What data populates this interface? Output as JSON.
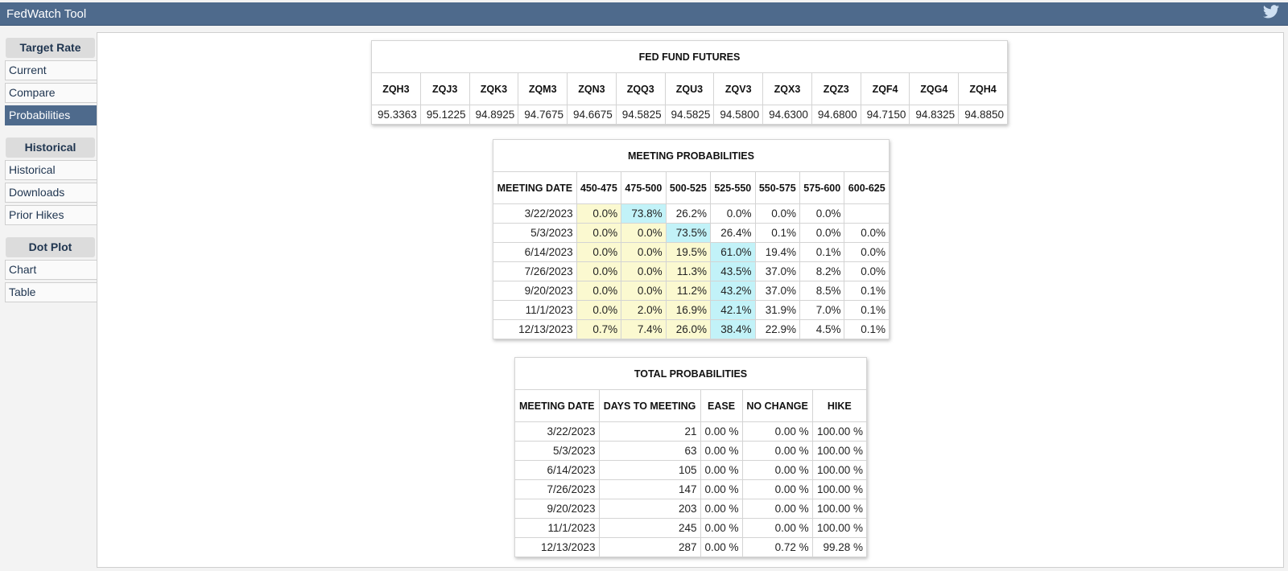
{
  "app": {
    "title": "FedWatch Tool",
    "twitter_icon": "twitter-bird-icon"
  },
  "sidebar": {
    "groups": [
      {
        "heading": "Target Rate",
        "items": [
          "Current",
          "Compare",
          "Probabilities"
        ]
      },
      {
        "heading": "Historical",
        "items": [
          "Historical",
          "Downloads",
          "Prior Hikes"
        ]
      },
      {
        "heading": "Dot Plot",
        "items": [
          "Chart",
          "Table"
        ]
      }
    ],
    "active_item": "Probabilities"
  },
  "colors": {
    "header": "#4e6a8c",
    "low_prob": "#fbf9d0",
    "max_prob": "#c2f2f8"
  },
  "fed_fund_futures": {
    "title": "FED FUND FUTURES",
    "headers": [
      "ZQH3",
      "ZQJ3",
      "ZQK3",
      "ZQM3",
      "ZQN3",
      "ZQQ3",
      "ZQU3",
      "ZQV3",
      "ZQX3",
      "ZQZ3",
      "ZQF4",
      "ZQG4",
      "ZQH4"
    ],
    "values": [
      "95.3363",
      "95.1225",
      "94.8925",
      "94.7675",
      "94.6675",
      "94.5825",
      "94.5825",
      "94.5800",
      "94.6300",
      "94.6800",
      "94.7150",
      "94.8325",
      "94.8850"
    ]
  },
  "meeting_probabilities": {
    "title": "MEETING PROBABILITIES",
    "headers": [
      "MEETING DATE",
      "450-475",
      "475-500",
      "500-525",
      "525-550",
      "550-575",
      "575-600",
      "600-625"
    ],
    "rows": [
      {
        "date": "3/22/2023",
        "cells": [
          "0.0%",
          "73.8%",
          "26.2%",
          "0.0%",
          "0.0%",
          "0.0%",
          ""
        ],
        "highlight": [
          "y",
          "c",
          "",
          "",
          "",
          "",
          ""
        ]
      },
      {
        "date": "5/3/2023",
        "cells": [
          "0.0%",
          "0.0%",
          "73.5%",
          "26.4%",
          "0.1%",
          "0.0%",
          "0.0%"
        ],
        "highlight": [
          "y",
          "y",
          "c",
          "",
          "",
          "",
          ""
        ]
      },
      {
        "date": "6/14/2023",
        "cells": [
          "0.0%",
          "0.0%",
          "19.5%",
          "61.0%",
          "19.4%",
          "0.1%",
          "0.0%"
        ],
        "highlight": [
          "y",
          "y",
          "y",
          "c",
          "",
          "",
          ""
        ]
      },
      {
        "date": "7/26/2023",
        "cells": [
          "0.0%",
          "0.0%",
          "11.3%",
          "43.5%",
          "37.0%",
          "8.2%",
          "0.0%"
        ],
        "highlight": [
          "y",
          "y",
          "y",
          "c",
          "",
          "",
          ""
        ]
      },
      {
        "date": "9/20/2023",
        "cells": [
          "0.0%",
          "0.0%",
          "11.2%",
          "43.2%",
          "37.0%",
          "8.5%",
          "0.1%"
        ],
        "highlight": [
          "y",
          "y",
          "y",
          "c",
          "",
          "",
          ""
        ]
      },
      {
        "date": "11/1/2023",
        "cells": [
          "0.0%",
          "2.0%",
          "16.9%",
          "42.1%",
          "31.9%",
          "7.0%",
          "0.1%"
        ],
        "highlight": [
          "y",
          "y",
          "y",
          "c",
          "",
          "",
          ""
        ]
      },
      {
        "date": "12/13/2023",
        "cells": [
          "0.7%",
          "7.4%",
          "26.0%",
          "38.4%",
          "22.9%",
          "4.5%",
          "0.1%"
        ],
        "highlight": [
          "y",
          "y",
          "y",
          "c",
          "",
          "",
          ""
        ]
      }
    ]
  },
  "total_probabilities": {
    "title": "TOTAL PROBABILITIES",
    "headers": [
      "MEETING DATE",
      "DAYS TO MEETING",
      "EASE",
      "NO CHANGE",
      "HIKE"
    ],
    "rows": [
      [
        "3/22/2023",
        "21",
        "0.00 %",
        "0.00 %",
        "100.00 %"
      ],
      [
        "5/3/2023",
        "63",
        "0.00 %",
        "0.00 %",
        "100.00 %"
      ],
      [
        "6/14/2023",
        "105",
        "0.00 %",
        "0.00 %",
        "100.00 %"
      ],
      [
        "7/26/2023",
        "147",
        "0.00 %",
        "0.00 %",
        "100.00 %"
      ],
      [
        "9/20/2023",
        "203",
        "0.00 %",
        "0.00 %",
        "100.00 %"
      ],
      [
        "11/1/2023",
        "245",
        "0.00 %",
        "0.00 %",
        "100.00 %"
      ],
      [
        "12/13/2023",
        "287",
        "0.00 %",
        "0.72 %",
        "99.28 %"
      ]
    ]
  }
}
